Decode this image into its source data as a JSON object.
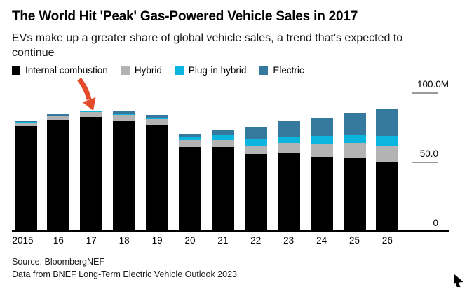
{
  "header": {
    "title": "The World Hit 'Peak' Gas-Powered Vehicle Sales in 2017",
    "subtitle": "EVs make up a greater share of global vehicle sales, a trend that's expected to continue"
  },
  "legend": [
    {
      "label": "Internal combustion",
      "color": "#000000"
    },
    {
      "label": "Hybrid",
      "color": "#b3b3b3"
    },
    {
      "label": "Plug-in hybrid",
      "color": "#0cb5dd"
    },
    {
      "label": "Electric",
      "color": "#35799e"
    }
  ],
  "chart_data": {
    "type": "bar",
    "stacked": true,
    "title": "The World Hit 'Peak' Gas-Powered Vehicle Sales in 2017",
    "unit": "million vehicles",
    "categories": [
      "2015",
      "16",
      "17",
      "18",
      "19",
      "20",
      "21",
      "22",
      "23",
      "24",
      "25",
      "26"
    ],
    "series": [
      {
        "name": "Internal combustion",
        "color": "#000000",
        "values": [
          75.8,
          80.3,
          82.5,
          79.2,
          76.3,
          60.8,
          60.6,
          55.6,
          55.9,
          53.5,
          52.5,
          50.2
        ]
      },
      {
        "name": "Hybrid",
        "color": "#b3b3b3",
        "values": [
          2.6,
          2.5,
          3.2,
          4.5,
          4.5,
          4.7,
          5.1,
          6.2,
          7.7,
          9.1,
          11.3,
          11.3
        ]
      },
      {
        "name": "Plug-in hybrid",
        "color": "#0cb5dd",
        "values": [
          0.3,
          0.5,
          0.5,
          0.9,
          1.0,
          2.0,
          3.4,
          4.4,
          4.0,
          6.2,
          5.3,
          7.1
        ]
      },
      {
        "name": "Electric",
        "color": "#35799e",
        "values": [
          0.6,
          0.9,
          0.8,
          1.8,
          1.9,
          2.5,
          4.2,
          9.2,
          11.5,
          12.8,
          16.5,
          19.5
        ]
      }
    ],
    "totals": [
      79.3,
      84.2,
      87.0,
      86.4,
      83.7,
      70.0,
      73.3,
      75.4,
      79.1,
      81.6,
      85.6,
      88.1
    ],
    "ylim": [
      0,
      100
    ],
    "yticks": [
      {
        "label": "100.0M",
        "value": 100
      },
      {
        "label": "50.0",
        "value": 50
      },
      {
        "label": "0",
        "value": 0
      }
    ],
    "xlabel": "",
    "ylabel": "",
    "grid": false,
    "legend_position": "top",
    "annotation": {
      "type": "arrow",
      "target_category": "17",
      "meaning": "peak ICE sales year",
      "color": "#e54b2a"
    }
  },
  "footer": {
    "source_line1": "Source: BloombergNEF",
    "source_line2": "Data from BNEF Long-Term Electric Vehicle Outlook 2023"
  },
  "icons": {
    "annotation_arrow": "red-arrow-pointing-to-2017-bar",
    "cursor": "mouse-pointer"
  }
}
